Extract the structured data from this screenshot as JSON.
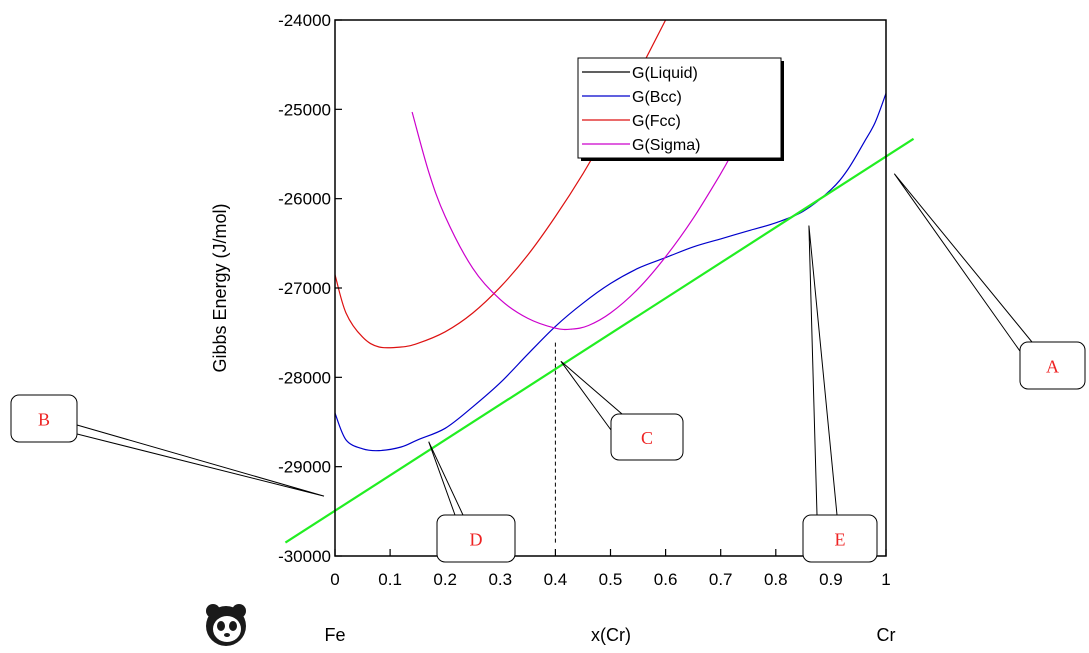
{
  "chart_data": {
    "type": "line",
    "ylabel": "Gibbs Energy (J/mol)",
    "xlabel": "x(Cr)",
    "x_ends": {
      "left": "Fe",
      "right": "Cr"
    },
    "xlim": [
      0,
      1
    ],
    "ylim": [
      -30000,
      -24000
    ],
    "x_ticks": [
      0,
      0.1,
      0.2,
      0.3,
      0.4,
      0.5,
      0.6,
      0.7,
      0.8,
      0.9,
      1
    ],
    "x_tick_labels": [
      "0",
      "0.1",
      "0.2",
      "0.3",
      "0.4",
      "0.5",
      "0.6",
      "0.7",
      "0.8",
      "0.9",
      "1"
    ],
    "y_ticks": [
      -30000,
      -29000,
      -28000,
      -27000,
      -26000,
      -25000,
      -24000
    ],
    "y_tick_labels": [
      "-30000",
      "-29000",
      "-28000",
      "-27000",
      "-26000",
      "-25000",
      "-24000"
    ],
    "legend_position": "top-right",
    "legend": [
      "G(Liquid)",
      "G(Bcc)",
      "G(Fcc)",
      "G(Sigma)"
    ],
    "series": [
      {
        "name": "G(Liquid)",
        "color": "#000000",
        "x": [],
        "y": []
      },
      {
        "name": "G(Bcc)",
        "color": "#0000cc",
        "x": [
          0,
          0.02,
          0.05,
          0.08,
          0.12,
          0.15,
          0.2,
          0.25,
          0.3,
          0.35,
          0.4,
          0.45,
          0.5,
          0.55,
          0.6,
          0.65,
          0.7,
          0.75,
          0.8,
          0.85,
          0.9,
          0.93,
          0.96,
          0.98,
          1
        ],
        "y": [
          -28400,
          -28700,
          -28800,
          -28820,
          -28780,
          -28700,
          -28570,
          -28330,
          -28060,
          -27740,
          -27430,
          -27170,
          -26950,
          -26780,
          -26660,
          -26540,
          -26450,
          -26360,
          -26270,
          -26140,
          -25900,
          -25680,
          -25370,
          -25150,
          -24820
        ]
      },
      {
        "name": "G(Fcc)",
        "color": "#dd1111",
        "x": [
          0,
          0.02,
          0.05,
          0.08,
          0.12,
          0.15,
          0.2,
          0.25,
          0.3,
          0.35,
          0.4,
          0.45,
          0.5,
          0.55,
          0.6,
          0.62
        ],
        "y": [
          -26850,
          -27280,
          -27550,
          -27660,
          -27660,
          -27620,
          -27490,
          -27280,
          -26990,
          -26630,
          -26200,
          -25720,
          -25180,
          -24600,
          -24000,
          -23750
        ]
      },
      {
        "name": "G(Sigma)",
        "color": "#cc00cc",
        "x": [
          0.14,
          0.17,
          0.2,
          0.25,
          0.3,
          0.35,
          0.4,
          0.43,
          0.46,
          0.5,
          0.55,
          0.6,
          0.65,
          0.7,
          0.72
        ],
        "y": [
          -25030,
          -25700,
          -26200,
          -26780,
          -27130,
          -27340,
          -27450,
          -27460,
          -27420,
          -27280,
          -27010,
          -26650,
          -26220,
          -25720,
          -25500
        ]
      },
      {
        "name": "",
        "color": "#22ee22",
        "x": [
          -0.09,
          1.05
        ],
        "y": [
          -29850,
          -25330
        ]
      }
    ],
    "annotations": [
      {
        "label": "A",
        "target_x": 1.015,
        "target_y": -25720
      },
      {
        "label": "B",
        "target_x": -0.02,
        "target_y": -29330
      },
      {
        "label": "C",
        "target_x": 0.41,
        "target_y": -27820
      },
      {
        "label": "D",
        "target_x": 0.17,
        "target_y": -28720
      },
      {
        "label": "E",
        "target_x": 0.86,
        "target_y": -26300
      }
    ],
    "dashed_line": {
      "x": 0.4,
      "y_from": -29850,
      "y_to": -27600
    }
  }
}
